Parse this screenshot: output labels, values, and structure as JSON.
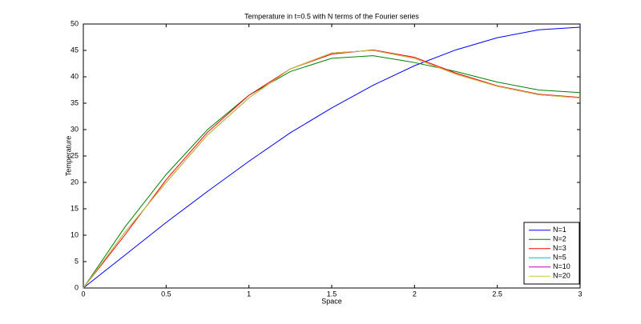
{
  "chart_data": {
    "type": "line",
    "title": "Temperature in t=0.5 with N terms of the Fourier series",
    "x_label": "Space",
    "y_label": "Temperature",
    "x": [
      0,
      0.25,
      0.5,
      0.75,
      1,
      1.25,
      1.5,
      1.75,
      2,
      2.25,
      2.5,
      2.75,
      3
    ],
    "series": [
      {
        "name": "N=1",
        "color": "#0000ff",
        "values": [
          0,
          6.2,
          12.4,
          18.3,
          24,
          29.4,
          34.1,
          38.4,
          42.1,
          45.1,
          47.4,
          48.9,
          49.4
        ]
      },
      {
        "name": "N=2",
        "color": "#008000",
        "values": [
          0,
          11.5,
          21.5,
          30,
          36.5,
          41,
          43.5,
          44,
          42.7,
          41,
          39,
          37.5,
          37
        ]
      },
      {
        "name": "N=3",
        "color": "#ff0000",
        "values": [
          0,
          10,
          20.5,
          29.5,
          36.5,
          41.5,
          44.3,
          45.1,
          43.7,
          40.7,
          38.3,
          36.7,
          36.1
        ]
      },
      {
        "name": "N=5",
        "color": "#00bfbf",
        "values": [
          0,
          10.5,
          20,
          29,
          36,
          41.5,
          44.5,
          45,
          43.5,
          40.5,
          38.2,
          36.6,
          36
        ]
      },
      {
        "name": "N=10",
        "color": "#bf00bf",
        "values": [
          0,
          10.5,
          20,
          29,
          36,
          41.5,
          44.5,
          45,
          43.5,
          40.5,
          38.2,
          36.6,
          36
        ]
      },
      {
        "name": "N=20",
        "color": "#cccc33",
        "values": [
          0,
          10.5,
          20,
          29,
          36,
          41.5,
          44.5,
          45,
          43.5,
          40.5,
          38.2,
          36.6,
          36
        ]
      }
    ],
    "xlim": [
      0,
      3
    ],
    "xticks": [
      0,
      0.5,
      1,
      1.5,
      2,
      2.5,
      3
    ],
    "ylim": [
      0,
      50
    ],
    "yticks": [
      0,
      5,
      10,
      15,
      20,
      25,
      30,
      35,
      40,
      45,
      50
    ],
    "grid": false,
    "legend": "lower right"
  }
}
